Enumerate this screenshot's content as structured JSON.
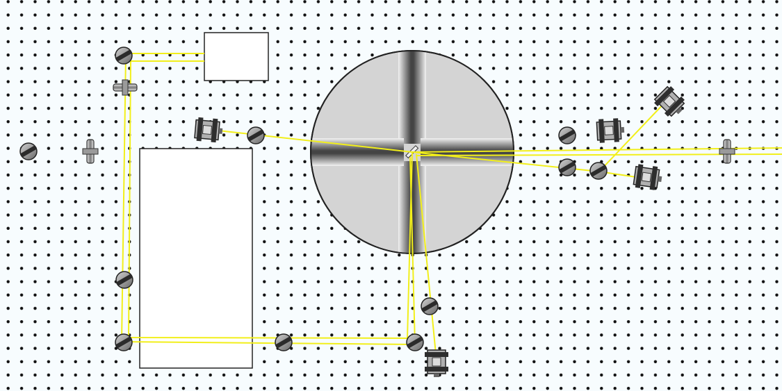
{
  "colors": {
    "background": "#f7fcfe",
    "hole": "#111111",
    "beam": "#f2ef1a",
    "chamber_fill": "#d4d4d4",
    "chamber_stroke": "#222222",
    "box_fill": "#ffffff",
    "component_dark": "#2e2e2e",
    "component_light": "#a8a8a8"
  },
  "components": {
    "chamber": {
      "type": "vacuum-chamber",
      "ports": 4
    },
    "boxes": [
      {
        "name": "upper-source-box",
        "type": "blank-box"
      },
      {
        "name": "laser-box",
        "type": "blank-box"
      }
    ],
    "mirrors_count": 11,
    "lens_count": 4,
    "mount_count": 5,
    "beam_count": 9
  }
}
